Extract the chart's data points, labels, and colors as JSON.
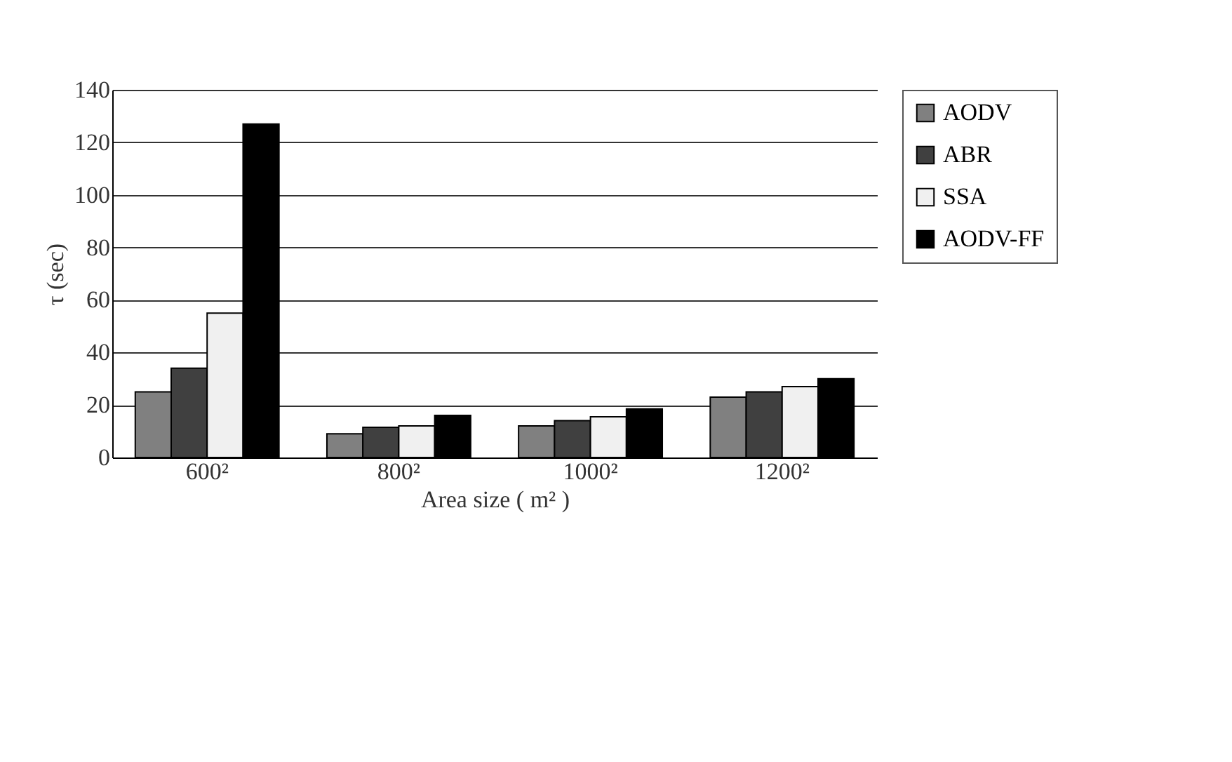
{
  "chart_data": {
    "type": "bar",
    "xlabel": "Area size ( m² )",
    "ylabel": "τ (sec)",
    "categories": [
      "600²",
      "800²",
      "1000²",
      "1200²"
    ],
    "series": [
      {
        "name": "AODV",
        "color": "#808080",
        "values": [
          25,
          9,
          12,
          23
        ]
      },
      {
        "name": "ABR",
        "color": "#404040",
        "values": [
          34,
          11.5,
          14,
          25
        ]
      },
      {
        "name": "SSA",
        "color": "#f0f0f0",
        "values": [
          55,
          12,
          15.5,
          27
        ]
      },
      {
        "name": "AODV-FF",
        "color": "#000000",
        "values": [
          127,
          16,
          18.5,
          30
        ]
      }
    ],
    "ylim": [
      0,
      140
    ],
    "yticks": [
      0,
      20,
      40,
      60,
      80,
      100,
      120,
      140
    ],
    "grid": "y",
    "legend": "right"
  }
}
